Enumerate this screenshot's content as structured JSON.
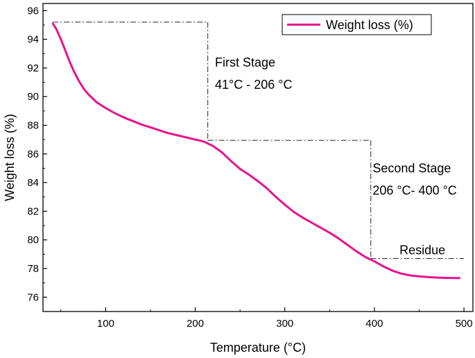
{
  "chart_data": {
    "type": "line",
    "xlabel": "Temperature (°C)",
    "ylabel": "Weight loss (%)",
    "xlim": [
      30,
      510
    ],
    "ylim": [
      75,
      96.5
    ],
    "xticks": [
      100,
      200,
      300,
      400,
      500
    ],
    "yticks": [
      76,
      78,
      80,
      82,
      84,
      86,
      88,
      90,
      92,
      94,
      96
    ],
    "legend_position": "top-right",
    "series": [
      {
        "name": "Weight loss (%)",
        "color": "#e8128c",
        "x": [
          41,
          45,
          50,
          55,
          60,
          65,
          70,
          75,
          80,
          90,
          100,
          110,
          120,
          130,
          140,
          150,
          160,
          170,
          180,
          190,
          200,
          206,
          210,
          220,
          230,
          240,
          250,
          260,
          270,
          280,
          290,
          300,
          310,
          320,
          330,
          340,
          350,
          360,
          370,
          380,
          390,
          400,
          410,
          420,
          430,
          440,
          450,
          460,
          470,
          480,
          490,
          495
        ],
        "y": [
          95.1,
          94.7,
          94.0,
          93.2,
          92.4,
          91.7,
          91.1,
          90.6,
          90.2,
          89.6,
          89.2,
          88.85,
          88.55,
          88.3,
          88.05,
          87.85,
          87.65,
          87.45,
          87.3,
          87.15,
          87.0,
          86.92,
          86.85,
          86.55,
          86.1,
          85.5,
          84.95,
          84.55,
          84.1,
          83.6,
          83.0,
          82.45,
          81.95,
          81.55,
          81.2,
          80.85,
          80.5,
          80.1,
          79.65,
          79.2,
          78.8,
          78.5,
          78.15,
          77.85,
          77.65,
          77.52,
          77.45,
          77.4,
          77.37,
          77.35,
          77.34,
          77.34
        ]
      }
    ],
    "annotations": [
      {
        "lines": [
          "First Stage",
          "41°C - 206 °C"
        ],
        "x": 222,
        "y": 92.1
      },
      {
        "lines": [
          "Second Stage",
          "206 °C- 400 °C"
        ],
        "x": 398,
        "y": 84.7
      },
      {
        "lines": [
          "Residue"
        ],
        "x": 428,
        "y": 79.0
      }
    ],
    "stage_markers": [
      {
        "from": [
          41,
          95.2
        ],
        "to": [
          214,
          95.2
        ],
        "drop_to": 86.95
      },
      {
        "from": [
          214,
          86.95
        ],
        "to": [
          396,
          86.95
        ],
        "drop_to": 78.7
      },
      {
        "from": [
          396,
          78.7
        ],
        "to": [
          500,
          78.7
        ]
      }
    ]
  }
}
